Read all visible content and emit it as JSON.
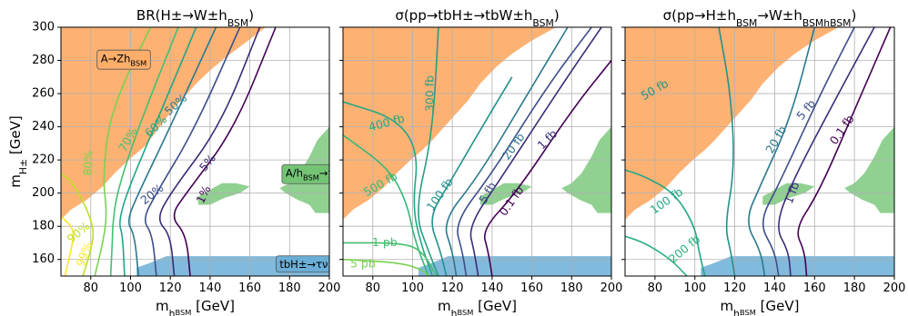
{
  "chart_data": {
    "type": "contour",
    "shared": {
      "xlabel": "m_{h_BSM} [GeV]",
      "ylabel": "m_{H±} [GeV]",
      "xlim": [
        65,
        200
      ],
      "ylim": [
        150,
        300
      ],
      "xticks": [
        80,
        100,
        120,
        140,
        160,
        180,
        200
      ],
      "yticks": [
        160,
        180,
        200,
        220,
        240,
        260,
        280,
        300
      ],
      "grid": true,
      "excluded_regions": [
        {
          "label": "A→Zh_BSM",
          "color": "#fdae6b"
        },
        {
          "label": "A/h_BSM→ττ",
          "color": "#74c476"
        },
        {
          "label": "tbH±→τν",
          "color": "#6baed6"
        }
      ]
    },
    "panels": [
      {
        "title": "BR(H±→W±h_BSM)",
        "xlabel": "m_{h_BSM} [GeV]",
        "ylabel": "m_{H±} [GeV]",
        "contours": [
          {
            "label": "1%",
            "level": 0.01,
            "color": "#440154",
            "points": [
              [
                130,
                150
              ],
              [
                128,
                175
              ],
              [
                120,
                186
              ],
              [
                128,
                200
              ],
              [
                152,
                238
              ],
              [
                173,
                300
              ]
            ]
          },
          {
            "label": "5%",
            "level": 0.05,
            "color": "#3b2c79",
            "points": [
              [
                122,
                150
              ],
              [
                120,
                175
              ],
              [
                113,
                184
              ],
              [
                120,
                200
              ],
              [
                145,
                240
              ],
              [
                165,
                300
              ]
            ]
          },
          {
            "label": "20%",
            "level": 0.2,
            "color": "#3d4e8a",
            "points": [
              [
                113,
                150
              ],
              [
                111,
                175
              ],
              [
                106,
                184
              ],
              [
                113,
                200
              ],
              [
                132,
                238
              ],
              [
                155,
                300
              ]
            ]
          },
          {
            "label": "50%",
            "level": 0.5,
            "color": "#2a788e",
            "points": [
              [
                104,
                150
              ],
              [
                102,
                175
              ],
              [
                98,
                183
              ],
              [
                104,
                200
              ],
              [
                120,
                240
              ],
              [
                143,
                300
              ]
            ]
          },
          {
            "label": "60%",
            "level": 0.6,
            "color": "#21a585",
            "points": [
              [
                97,
                150
              ],
              [
                96,
                175
              ],
              [
                94,
                182
              ],
              [
                98,
                200
              ],
              [
                112,
                240
              ],
              [
                133,
                300
              ]
            ]
          },
          {
            "label": "70%",
            "level": 0.7,
            "color": "#44bf70",
            "points": [
              [
                90,
                150
              ],
              [
                91,
                175
              ],
              [
                91,
                180
              ],
              [
                93,
                200
              ],
              [
                104,
                240
              ],
              [
                124,
                300
              ]
            ]
          },
          {
            "label": "80%",
            "level": 0.8,
            "color": "#7ad151",
            "points": [
              [
                82,
                150
              ],
              [
                87,
                175
              ],
              [
                88,
                190
              ],
              [
                86,
                210
              ],
              [
                90,
                250
              ],
              [
                110,
                300
              ]
            ]
          },
          {
            "label": "90%",
            "level": 0.9,
            "color": "#bddf26",
            "points": [
              [
                76,
                150
              ],
              [
                80,
                165
              ],
              [
                82,
                180
              ],
              [
                72,
                205
              ],
              [
                65,
                212
              ]
            ]
          },
          {
            "label": "99%",
            "level": 0.99,
            "color": "#fde725",
            "points": [
              [
                67,
                150
              ],
              [
                70,
                165
              ],
              [
                72,
                178
              ],
              [
                65,
                186
              ]
            ]
          }
        ]
      },
      {
        "title": "σ(pp→tbH±→tbW±h_BSM)",
        "xlabel": "m_{h_BSM} [GeV]",
        "ylabel": "",
        "contours": [
          {
            "label": "0.1 fb",
            "level": 0.1,
            "color": "#440154",
            "points": [
              [
                140,
                150
              ],
              [
                138,
                165
              ],
              [
                135,
                178
              ],
              [
                152,
                200
              ],
              [
                180,
                250
              ],
              [
                200,
                280
              ]
            ]
          },
          {
            "label": "1 fb",
            "level": 1,
            "color": "#3b2c79",
            "points": [
              [
                133,
                150
              ],
              [
                131,
                165
              ],
              [
                128,
                180
              ],
              [
                145,
                210
              ],
              [
                175,
                265
              ],
              [
                195,
                300
              ]
            ]
          },
          {
            "label": "5 fb",
            "level": 5,
            "color": "#3d4e8a",
            "points": [
              [
                127,
                150
              ],
              [
                125,
                165
              ],
              [
                121,
                182
              ],
              [
                140,
                212
              ],
              [
                168,
                265
              ],
              [
                190,
                300
              ]
            ]
          },
          {
            "label": "20 fb",
            "level": 20,
            "color": "#2a788e",
            "points": [
              [
                122,
                150
              ],
              [
                120,
                165
              ],
              [
                115,
                183
              ],
              [
                133,
                210
              ],
              [
                158,
                260
              ],
              [
                178,
                300
              ]
            ]
          },
          {
            "label": "100 fb",
            "level": 100,
            "color": "#21918c",
            "points": [
              [
                117,
                150
              ],
              [
                114,
                165
              ],
              [
                108,
                185
              ],
              [
                118,
                205
              ],
              [
                135,
                240
              ],
              [
                150,
                270
              ]
            ]
          },
          {
            "label": "300 fb",
            "level": 300,
            "color": "#2a9c86",
            "points": [
              [
                113,
                150
              ],
              [
                108,
                165
              ],
              [
                101,
                188
              ],
              [
                110,
                235
              ],
              [
                113,
                300
              ]
            ]
          },
          {
            "label": "400 fb",
            "level": 400,
            "color": "#22a884",
            "points": [
              [
                110,
                150
              ],
              [
                104,
                170
              ],
              [
                100,
                192
              ],
              [
                103,
                225
              ],
              [
                92,
                245
              ],
              [
                65,
                255
              ]
            ]
          },
          {
            "label": "500 fb",
            "level": 500,
            "color": "#35b779",
            "points": [
              [
                108,
                150
              ],
              [
                101,
                172
              ],
              [
                97,
                195
              ],
              [
                88,
                215
              ],
              [
                65,
                235
              ]
            ]
          },
          {
            "label": "1 pb",
            "level": 1000,
            "color": "#44bf70",
            "points": [
              [
                65,
                170
              ],
              [
                95,
                170
              ],
              [
                105,
                165
              ],
              [
                112,
                150
              ]
            ]
          },
          {
            "label": "5 pb",
            "level": 5000,
            "color": "#7ad151",
            "points": [
              [
                65,
                160
              ],
              [
                95,
                158
              ],
              [
                106,
                153
              ],
              [
                108,
                150
              ]
            ]
          }
        ]
      },
      {
        "title": "σ(pp→H±h_BSM→W±h_BSMh_BSM)",
        "xlabel": "m_{h_BSM} [GeV]",
        "ylabel": "",
        "contours": [
          {
            "label": "0.1 fb",
            "level": 0.1,
            "color": "#440154",
            "points": [
              [
                156,
                150
              ],
              [
                155,
                165
              ],
              [
                150,
                178
              ],
              [
                162,
                200
              ],
              [
                180,
                250
              ],
              [
                198,
                300
              ]
            ]
          },
          {
            "label": "1 fb",
            "level": 1,
            "color": "#3b2c79",
            "points": [
              [
                148,
                150
              ],
              [
                147,
                165
              ],
              [
                140,
                180
              ],
              [
                150,
                210
              ],
              [
                172,
                260
              ],
              [
                190,
                300
              ]
            ]
          },
          {
            "label": "5 fb",
            "level": 5,
            "color": "#3d4e8a",
            "points": [
              [
                142,
                150
              ],
              [
                140,
                165
              ],
              [
                132,
                182
              ],
              [
                142,
                205
              ],
              [
                163,
                260
              ],
              [
                180,
                300
              ]
            ]
          },
          {
            "label": "20 fb",
            "level": 20,
            "color": "#2a788e",
            "points": [
              [
                135,
                150
              ],
              [
                133,
                165
              ],
              [
                125,
                183
              ],
              [
                133,
                205
              ],
              [
                148,
                245
              ],
              [
                160,
                300
              ]
            ]
          },
          {
            "label": "50 fb",
            "level": 50,
            "color": "#21918c",
            "points": [
              [
                120,
                150
              ],
              [
                118,
                165
              ],
              [
                115,
                180
              ],
              [
                120,
                215
              ],
              [
                118,
                260
              ],
              [
                112,
                300
              ]
            ]
          },
          {
            "label": "100 fb",
            "level": 100,
            "color": "#21a585",
            "points": [
              [
                105,
                150
              ],
              [
                102,
                165
              ],
              [
                100,
                180
              ],
              [
                90,
                200
              ],
              [
                75,
                210
              ],
              [
                65,
                214
              ]
            ]
          },
          {
            "label": "200 fb",
            "level": 200,
            "color": "#2cb17e",
            "points": [
              [
                96,
                150
              ],
              [
                88,
                160
              ],
              [
                75,
                170
              ],
              [
                65,
                174
              ]
            ]
          }
        ]
      }
    ]
  }
}
